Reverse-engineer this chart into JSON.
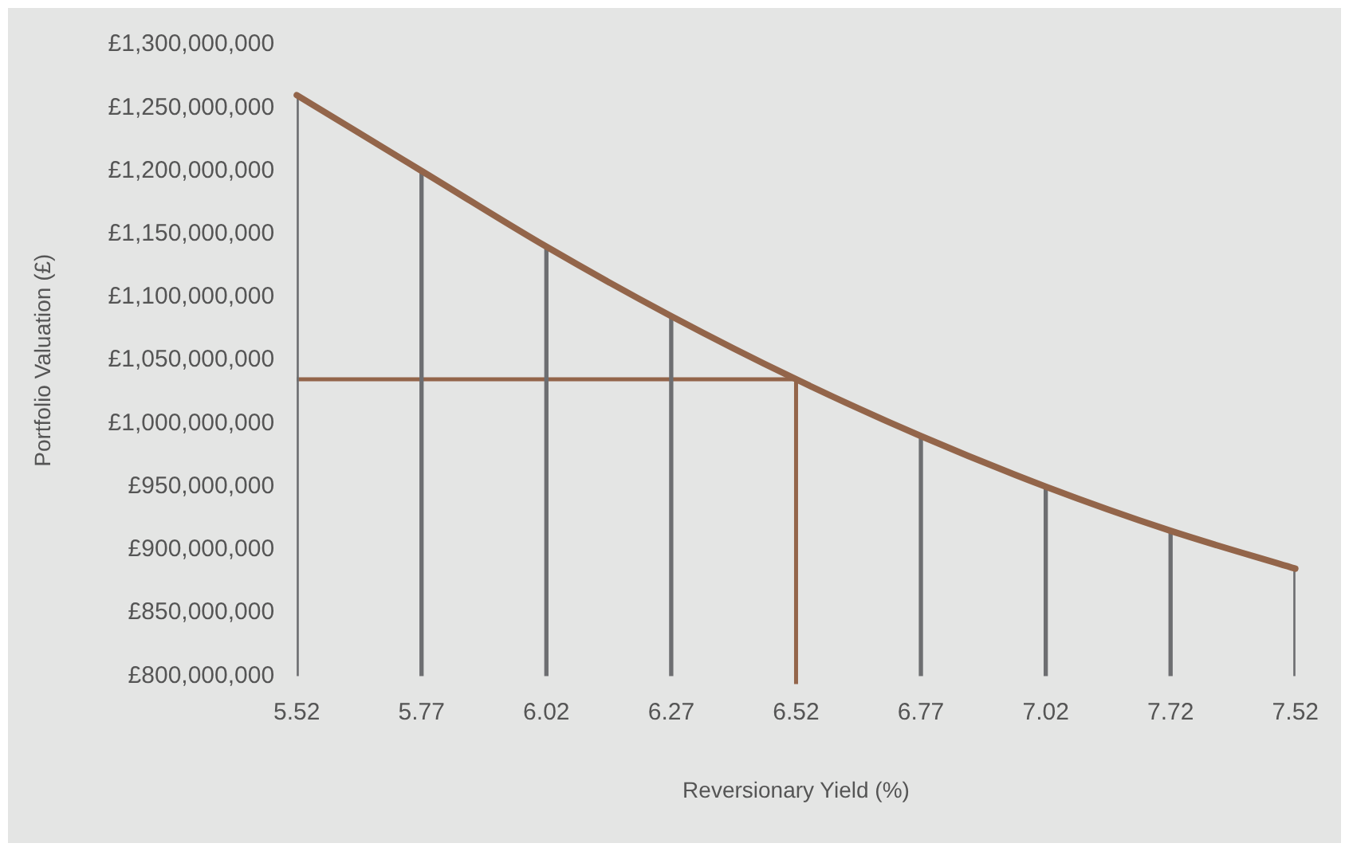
{
  "chart_data": {
    "type": "line",
    "xlabel": "Reversionary Yield (%)",
    "ylabel": "Portfolio Valuation (£)",
    "categories": [
      "5.52",
      "5.77",
      "6.02",
      "6.27",
      "6.52",
      "6.77",
      "7.02",
      "7.72",
      "7.52"
    ],
    "series": [
      {
        "type": "bar",
        "color": "#6d6e71",
        "values": [
          1260000000,
          1200000000,
          1140000000,
          1085000000,
          null,
          990000000,
          950000000,
          915000000,
          885000000
        ]
      },
      {
        "color": "#93654a",
        "values": [
          1260000000,
          1200000000,
          1140000000,
          1085000000,
          1035000000,
          990000000,
          950000000,
          915000000,
          885000000
        ]
      }
    ],
    "ylim": [
      800000000,
      1300000000
    ],
    "yticks": [
      {
        "value": 800000000,
        "label": "£800,000,000"
      },
      {
        "value": 850000000,
        "label": "£850,000,000"
      },
      {
        "value": 900000000,
        "label": "£900,000,000"
      },
      {
        "value": 950000000,
        "label": "£950,000,000"
      },
      {
        "value": 1000000000,
        "label": "£1,000,000,000"
      },
      {
        "value": 1050000000,
        "label": "£1,050,000,000"
      },
      {
        "value": 1100000000,
        "label": "£1,100,000,000"
      },
      {
        "value": 1150000000,
        "label": "£1,150,000,000"
      },
      {
        "value": 1200000000,
        "label": "£1,200,000,000"
      },
      {
        "value": 1250000000,
        "label": "£1,250,000,000"
      },
      {
        "value": 1300000000,
        "label": "£1,300,000,000"
      }
    ],
    "ref_lines": [
      {
        "axis": "y",
        "value": 1035000000,
        "color": "#93654a"
      },
      {
        "axis": "x",
        "value": "6.52",
        "color": "#93654a"
      }
    ],
    "grid": false,
    "legend": false,
    "marker": "none",
    "line_style": "solid"
  }
}
